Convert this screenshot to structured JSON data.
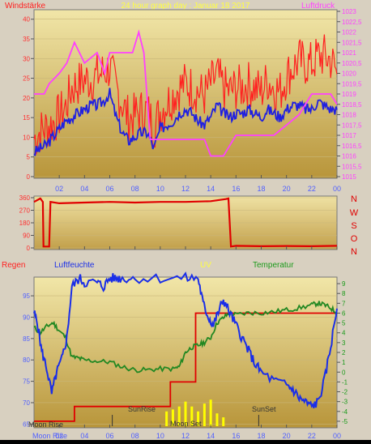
{
  "header": {
    "left": "Windstärke",
    "center": "24 hour graph day : Januar 18 2017",
    "right": "Luftdruck"
  },
  "wind_panel_labels": [
    "N",
    "W",
    "S",
    "O",
    "N"
  ],
  "bottom_header": {
    "rain": "Regen",
    "humidity": "Luftfeuchte",
    "uv": "UV",
    "temp": "Temperatur"
  },
  "annotations": {
    "moonrise": "Moon Rise",
    "sunrise": "SunRise",
    "moonset": "Moon Set",
    "sunset": "SunSet",
    "moonrise_axis": "Moon Rise"
  },
  "colors": {
    "windspeed": "#ff2020",
    "gust_max": "#ff2020",
    "wind_avg": "#2020e0",
    "pressure": "#ff40ff",
    "direction": "#e00000",
    "humidity": "#1a2ee8",
    "temperature": "#228822",
    "rain": "#e00000",
    "uv": "#ffff00"
  },
  "chart_data": [
    {
      "type": "line",
      "xlabel": "",
      "ylabel": "",
      "x_ticks": [
        "02",
        "04",
        "06",
        "08",
        "10",
        "12",
        "14",
        "16",
        "18",
        "20",
        "22",
        "00"
      ],
      "x_range": [
        0,
        24
      ],
      "y_left_ticks": [
        "0",
        "5",
        "10",
        "15",
        "20",
        "25",
        "30",
        "35",
        "40"
      ],
      "ylim_left": [
        0,
        42
      ],
      "y_right_ticks": [
        "1015",
        "1015,5",
        "1016",
        "1016,5",
        "1017",
        "1017,5",
        "1018",
        "1018,5",
        "1019",
        "1019,5",
        "1020",
        "1020,5",
        "1021",
        "1021,5",
        "1022",
        "1022,5",
        "1023"
      ],
      "ylim_right": [
        1015,
        1023
      ],
      "series": [
        {
          "axis": "left",
          "style": "spiky",
          "x": [
            0,
            0.5,
            1,
            1.5,
            2,
            2.5,
            3,
            3.5,
            4,
            4.5,
            5,
            5.5,
            6,
            6.5,
            7,
            7.5,
            8,
            8.5,
            9,
            9.5,
            10,
            10.5,
            11,
            11.5,
            12,
            12.5,
            13,
            13.5,
            14,
            14.5,
            15,
            15.5,
            16,
            16.5,
            17,
            17.5,
            18,
            18.5,
            19,
            19.5,
            20,
            20.5,
            21,
            21.5,
            22,
            22.5,
            23,
            23.5,
            24
          ],
          "values": [
            9,
            11,
            12,
            13,
            15,
            17,
            22,
            23,
            24,
            24,
            25,
            26,
            27,
            22,
            18,
            14,
            15,
            16,
            16,
            12,
            16,
            18,
            20,
            22,
            23,
            22,
            21,
            20,
            23,
            25,
            22,
            21,
            22,
            22,
            23,
            22,
            21,
            24,
            22,
            21,
            25,
            27,
            29,
            28,
            28,
            30,
            30,
            29,
            26
          ]
        },
        {
          "axis": "left",
          "x": [
            0,
            0.5,
            1,
            1.5,
            2,
            2.5,
            3,
            3.5,
            4,
            4.5,
            5,
            5.5,
            6,
            6.5,
            7,
            7.5,
            8,
            8.5,
            9,
            9.5,
            10,
            10.5,
            11,
            11.5,
            12,
            12.5,
            13,
            13.5,
            14,
            14.5,
            15,
            15.5,
            16,
            16.5,
            17,
            17.5,
            18,
            18.5,
            19,
            19.5,
            20,
            20.5,
            21,
            21.5,
            22,
            22.5,
            23,
            23.5,
            24
          ],
          "values": [
            6,
            7,
            8,
            10,
            12,
            14,
            15,
            16,
            17,
            18,
            18,
            19,
            21,
            15,
            11,
            9,
            10,
            11,
            11,
            7,
            12,
            13,
            14,
            16,
            17,
            16,
            14,
            13,
            15,
            18,
            16,
            15,
            16,
            16,
            17,
            16,
            15,
            17,
            16,
            15,
            17,
            18,
            18,
            17,
            17,
            19,
            18,
            17,
            17
          ]
        },
        {
          "axis": "right",
          "x": [
            0,
            0.8,
            1.2,
            2,
            2.6,
            3.2,
            4,
            5,
            5.6,
            6,
            7,
            7.8,
            8.3,
            8.7,
            9.2,
            9.8,
            10.5,
            11,
            12,
            13,
            13.5,
            14,
            14.5,
            15,
            15.5,
            16,
            17,
            18,
            19,
            20,
            21,
            21.5,
            22,
            23,
            23.5,
            24
          ],
          "values": [
            1019,
            1019,
            1019.5,
            1020,
            1020.5,
            1021.5,
            1020.5,
            1021,
            1020,
            1021,
            1021,
            1021,
            1022,
            1021,
            1016.8,
            1016.8,
            1016.8,
            1016.8,
            1016.8,
            1016.8,
            1016.8,
            1016,
            1016,
            1016,
            1016.5,
            1017,
            1017,
            1017,
            1017,
            1017.5,
            1018,
            1018.5,
            1019,
            1019,
            1019,
            1018.5
          ]
        }
      ]
    },
    {
      "type": "line",
      "x_range": [
        0,
        24
      ],
      "y_ticks": [
        "0",
        "90",
        "180",
        "270",
        "360"
      ],
      "ylim": [
        0,
        360
      ],
      "series": [
        {
          "x": [
            0,
            0.3,
            0.5,
            0.7,
            0.75,
            1.2,
            1.3,
            2,
            4,
            6,
            8,
            10,
            12,
            14,
            15.2,
            15.4,
            15.6,
            16,
            18,
            20,
            22,
            24
          ],
          "values": [
            330,
            345,
            355,
            330,
            10,
            10,
            330,
            320,
            325,
            330,
            325,
            330,
            330,
            335,
            350,
            355,
            10,
            15,
            12,
            14,
            12,
            15
          ]
        }
      ]
    },
    {
      "type": "line",
      "x_range": [
        0,
        24
      ],
      "y_left_ticks": [
        "65",
        "70",
        "75",
        "80",
        "85",
        "90",
        "95"
      ],
      "ylim_left": [
        64.5,
        99
      ],
      "y_right_ticks": [
        "9",
        "8",
        "7",
        "6",
        "5",
        "4",
        "3",
        "2",
        "1",
        "0",
        "-1",
        "-2",
        "-3",
        "-4",
        "-5"
      ],
      "ylim_right": [
        -5.5,
        9.5
      ],
      "series": [
        {
          "axis": "left",
          "x": [
            0,
            0.3,
            0.6,
            1,
            1.4,
            1.8,
            2.2,
            2.6,
            3,
            3.6,
            4,
            5,
            5.5,
            6,
            6.5,
            7,
            8,
            10,
            12,
            13,
            13.4,
            13.8,
            14.2,
            14.6,
            15,
            15.5,
            16,
            16.5,
            17,
            17.5,
            18,
            19,
            20,
            20.5,
            21,
            21.5,
            22,
            22.5,
            23,
            23.5,
            24
          ],
          "values": [
            91,
            88,
            82,
            78,
            72,
            77,
            80,
            85,
            97,
            99,
            98,
            98,
            97,
            99,
            99,
            99,
            99,
            99,
            99,
            99,
            93,
            90,
            88,
            91,
            94,
            91,
            88,
            85,
            82,
            79,
            77,
            75,
            74,
            73,
            71,
            70,
            69,
            70,
            75,
            83,
            92
          ]
        },
        {
          "axis": "right",
          "x": [
            0,
            0.5,
            1,
            1.5,
            2,
            2.5,
            3,
            3.5,
            4,
            5,
            6,
            7,
            8,
            9,
            10,
            11,
            11.5,
            12,
            12.5,
            13,
            13.5,
            14,
            14.5,
            15,
            15.5,
            16,
            17,
            18,
            19,
            20,
            21,
            22,
            22.5,
            23,
            23.5,
            24
          ],
          "values": [
            4.5,
            4,
            4.6,
            5,
            4.2,
            3.5,
            1.5,
            1.4,
            1.2,
            1.1,
            1,
            0.5,
            0.2,
            0.2,
            0.3,
            0.3,
            0.5,
            2,
            2.5,
            2.7,
            3,
            3.5,
            5,
            5.5,
            6,
            5.8,
            6,
            6,
            6.1,
            6.3,
            6.5,
            6.8,
            7,
            6.8,
            6.5,
            6
          ]
        },
        {
          "axis": "right",
          "style": "step",
          "x": [
            0,
            3.2,
            3.2,
            10.8,
            10.8,
            12.8,
            12.8,
            24
          ],
          "values": [
            -5,
            -5,
            -3.5,
            -3.5,
            -1,
            -1,
            6,
            6
          ]
        },
        {
          "axis": "right",
          "style": "bars",
          "x": [
            10.5,
            11,
            11.5,
            12,
            12.5,
            13,
            13.5,
            14,
            14.5,
            15
          ],
          "values": [
            -4,
            -3.8,
            -3.5,
            -3,
            -3.5,
            -4,
            -3.2,
            -2.8,
            -4.2,
            -4.6
          ]
        }
      ]
    }
  ]
}
